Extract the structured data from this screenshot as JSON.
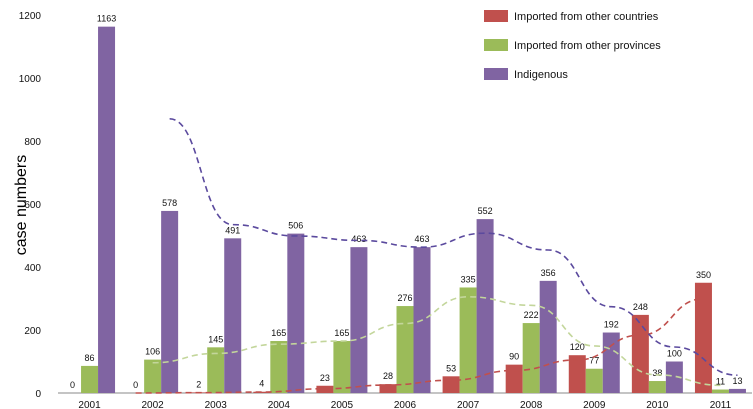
{
  "chart_data": {
    "type": "bar",
    "title": "",
    "xlabel": "",
    "ylabel": "case numbers",
    "ylim": [
      0,
      1200
    ],
    "yticks": [
      0,
      200,
      400,
      600,
      800,
      1000,
      1200
    ],
    "categories": [
      "2001",
      "2002",
      "2003",
      "2004",
      "2005",
      "2006",
      "2007",
      "2008",
      "2009",
      "2010",
      "2011"
    ],
    "legend_position": "top-right",
    "grid": false,
    "series": [
      {
        "name": "Imported from other countries",
        "color": "#c0504d",
        "values": [
          0,
          0,
          2,
          4,
          23,
          28,
          53,
          90,
          120,
          248,
          350
        ]
      },
      {
        "name": "Imported from other provinces",
        "color": "#9bbb59",
        "values": [
          86,
          106,
          145,
          165,
          165,
          276,
          335,
          222,
          77,
          38,
          11
        ]
      },
      {
        "name": "Indigenous",
        "color": "#8064a2",
        "values": [
          1163,
          578,
          491,
          506,
          463,
          463,
          552,
          356,
          192,
          100,
          13
        ]
      }
    ],
    "trendlines": [
      {
        "series": "Imported from other countries",
        "color": "#c0504d",
        "dash": true
      },
      {
        "series": "Imported from other provinces",
        "color": "#c3d69b",
        "dash": true
      },
      {
        "series": "Indigenous",
        "color": "#5b4a9e",
        "dash": true
      }
    ]
  }
}
